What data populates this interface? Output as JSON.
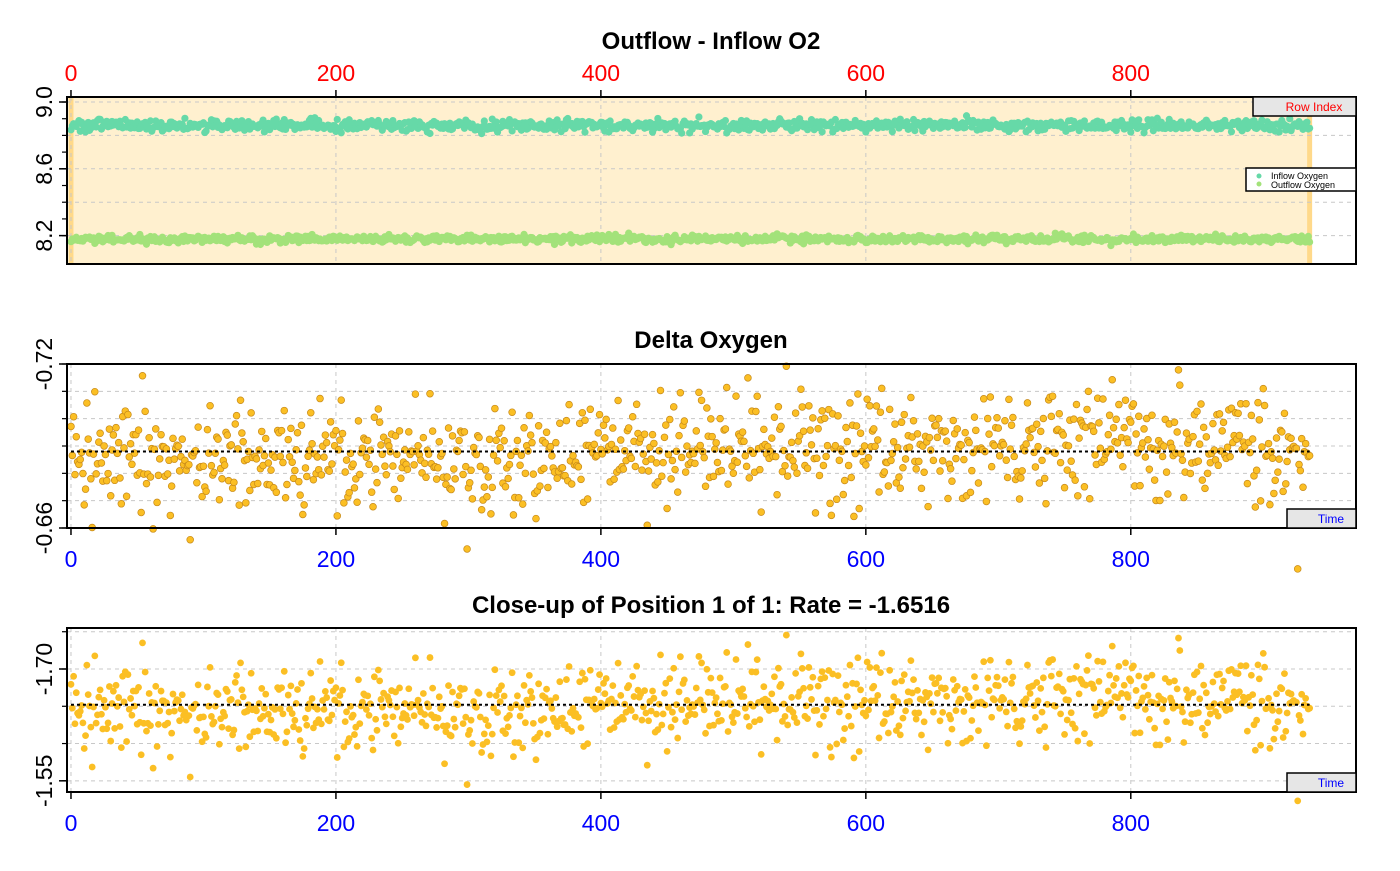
{
  "colors": {
    "top_axis_labels": "#ff0000",
    "bottom_axis_labels": "#0000ff",
    "inflow": "#66d9a8",
    "outflow": "#a3e27a",
    "delta_points": "#fbbf24",
    "delta_outline": "#c78a1a",
    "window_fill": "#fff0cf",
    "window_edge": "#ffd98a",
    "grid": "#c8c8c8",
    "mean_line": "#000000"
  },
  "chart_data": [
    {
      "type": "scatter",
      "title": "Outflow - Inflow O2",
      "xlabel": "",
      "ylabel": "",
      "x_axis": {
        "side": "top",
        "ticks": [
          0,
          200,
          400,
          600,
          800
        ],
        "tick_labels": [
          "0",
          "200",
          "400",
          "600",
          "800"
        ],
        "range": [
          -3,
          970
        ],
        "label_color": "red"
      },
      "y_axis": {
        "ticks": [
          8.2,
          8.6,
          9.0
        ],
        "tick_labels": [
          "8.2",
          "8.6",
          "9.0"
        ],
        "range": [
          8.03,
          9.03
        ]
      },
      "highlight_window": {
        "from": 0,
        "to": 935
      },
      "grid": true,
      "box_label": "Row Index",
      "legend": {
        "position": "right",
        "entries": [
          "Inflow Oxygen",
          "Outflow Oxygen"
        ]
      },
      "series": [
        {
          "name": "Inflow Oxygen",
          "n": 936,
          "mean": 8.86,
          "spread": 0.018
        },
        {
          "name": "Outflow Oxygen",
          "n": 936,
          "mean": 8.18,
          "spread": 0.012
        }
      ]
    },
    {
      "type": "scatter",
      "title": "Delta Oxygen",
      "xlabel": "",
      "ylabel": "",
      "x_axis": {
        "side": "bottom",
        "ticks": [
          0,
          200,
          400,
          600,
          800
        ],
        "tick_labels": [
          "0",
          "200",
          "400",
          "600",
          "800"
        ],
        "range": [
          -3,
          970
        ],
        "label_color": "blue"
      },
      "y_axis": {
        "ticks": [
          -0.66,
          -0.72
        ],
        "tick_labels": [
          "-0.66",
          "-0.72"
        ],
        "range": [
          -0.66,
          -0.72
        ],
        "reversed": true
      },
      "grid": true,
      "box_label": "Time",
      "mean_line": -0.688,
      "series": [
        {
          "name": "",
          "n": 936,
          "mean": -0.688,
          "spread": 0.011
        }
      ]
    },
    {
      "type": "scatter",
      "title": "Close-up of Position 1 of 1: Rate =  -1.6516",
      "xlabel": "",
      "ylabel": "",
      "x_axis": {
        "side": "bottom",
        "ticks": [
          0,
          200,
          400,
          600,
          800
        ],
        "tick_labels": [
          "0",
          "200",
          "400",
          "600",
          "800"
        ],
        "range": [
          -3,
          970
        ],
        "label_color": "blue"
      },
      "y_axis": {
        "ticks": [
          -1.55,
          -1.7
        ],
        "tick_labels": [
          "-1.55",
          "-1.70"
        ],
        "range": [
          -1.535,
          -1.755
        ],
        "reversed": true
      },
      "grid": true,
      "box_label": "Time",
      "rate": -1.6516,
      "mean_line": -1.652,
      "series": [
        {
          "name": "",
          "n": 936,
          "mean": -1.652,
          "spread": 0.033
        }
      ]
    }
  ]
}
